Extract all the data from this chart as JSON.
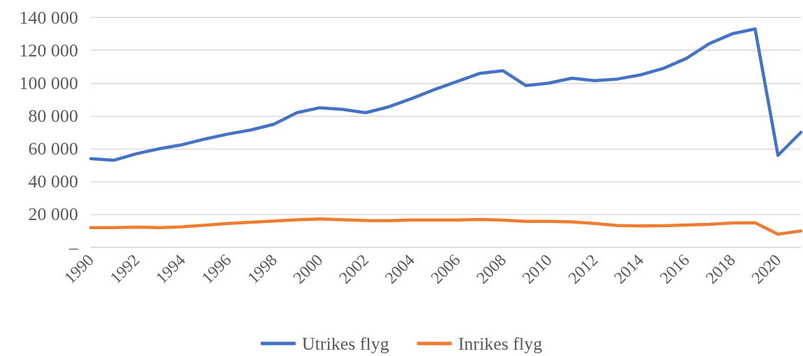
{
  "chart_data": {
    "type": "line",
    "categories": [
      "1990",
      null,
      "1992",
      null,
      "1994",
      null,
      "1996",
      null,
      "1998",
      null,
      "2000",
      null,
      "2002",
      null,
      "2004",
      null,
      "2006",
      null,
      "2008",
      null,
      "2010",
      null,
      "2012",
      null,
      "2014",
      null,
      "2016",
      null,
      "2018",
      null,
      "2020",
      null
    ],
    "series": [
      {
        "name": "Utrikes flyg",
        "color": "#4472c4",
        "values": [
          54000,
          53000,
          57000,
          60000,
          62500,
          66000,
          69000,
          71500,
          75000,
          82000,
          85000,
          84000,
          82000,
          85500,
          90500,
          96000,
          101000,
          106000,
          107500,
          98500,
          100000,
          103000,
          101500,
          102500,
          105000,
          109000,
          115000,
          124000,
          130000,
          133000,
          56000,
          70000
        ]
      },
      {
        "name": "Inrikes flyg",
        "color": "#ed7d31",
        "values": [
          12000,
          12000,
          12300,
          12000,
          12500,
          13500,
          14500,
          15300,
          16000,
          16800,
          17300,
          16800,
          16300,
          16200,
          16600,
          16600,
          16600,
          17000,
          16500,
          15800,
          15800,
          15500,
          14500,
          13300,
          13000,
          13200,
          13600,
          14000,
          14800,
          15000,
          8000,
          10000
        ]
      }
    ],
    "ylim": [
      0,
      140000
    ],
    "yticks": [
      {
        "value": 0,
        "label": "–"
      },
      {
        "value": 20000,
        "label": "20 000"
      },
      {
        "value": 40000,
        "label": "40 000"
      },
      {
        "value": 60000,
        "label": "60 000"
      },
      {
        "value": 80000,
        "label": "80 000"
      },
      {
        "value": 100000,
        "label": "100 000"
      },
      {
        "value": 120000,
        "label": "120 000"
      },
      {
        "value": 140000,
        "label": "140 000"
      }
    ],
    "grid": "y",
    "legend": "bottom",
    "marker": "none",
    "line_style": "solid"
  }
}
